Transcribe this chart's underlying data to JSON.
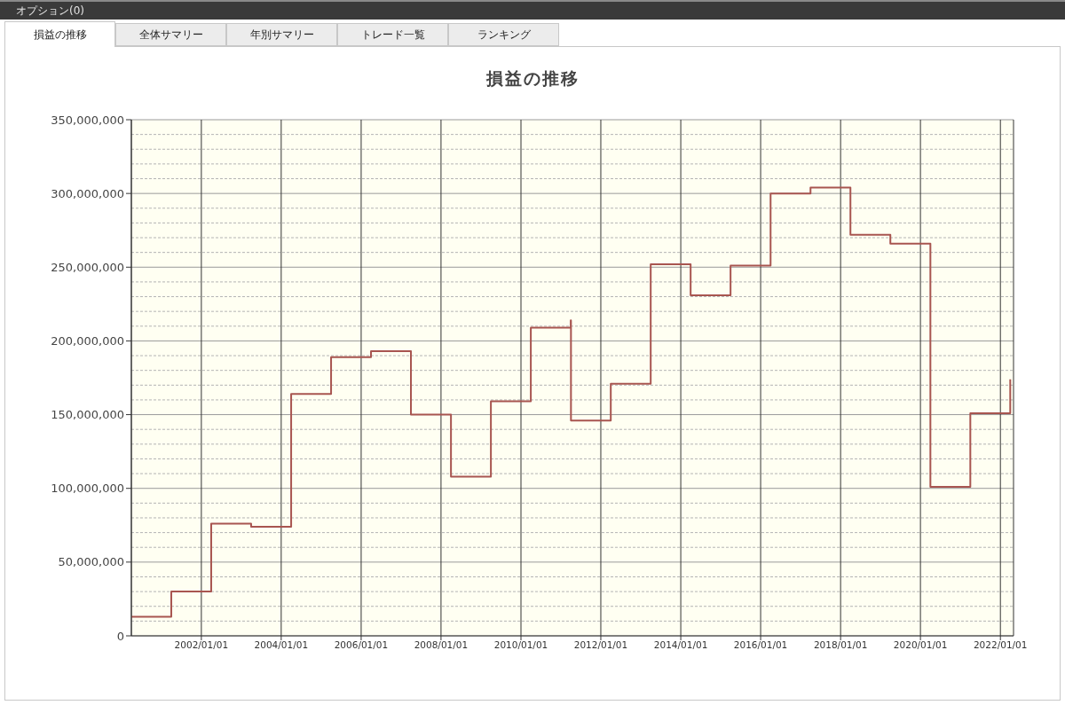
{
  "chart_data": {
    "type": "step",
    "title": "損益の推移",
    "annotations": [
      "オプション(0)",
      "損益の推移",
      "全体サマリー",
      "年別サマリー",
      "トレード一覧",
      "ランキング"
    ],
    "x": [
      "2000-04-01",
      "2001-04-01",
      "2002-04-01",
      "2003-04-01",
      "2004-04-01",
      "2005-04-01",
      "2006-04-01",
      "2007-04-01",
      "2008-04-01",
      "2009-04-01",
      "2010-04-01",
      "2011-04-01",
      "2011-04-03",
      "2012-04-01",
      "2013-04-01",
      "2014-04-01",
      "2015-04-01",
      "2016-04-01",
      "2017-04-01",
      "2018-04-01",
      "2019-04-01",
      "2020-04-01",
      "2021-04-01",
      "2022-04-01"
    ],
    "values": [
      13000000,
      30000000,
      76000000,
      74000000,
      164000000,
      189000000,
      193000000,
      150000000,
      108000000,
      159000000,
      209000000,
      214000000,
      146000000,
      171000000,
      252000000,
      231000000,
      251000000,
      300000000,
      304000000,
      272000000,
      266000000,
      101000000,
      151000000,
      174000000
    ],
    "color": "#a85550",
    "line_style": "solid",
    "xlim": [
      "2000-04-01",
      "2022-05-01"
    ],
    "xticks": [
      {
        "value": "2002-01-01",
        "label": "2002/01/01"
      },
      {
        "value": "2004-01-01",
        "label": "2004/01/01"
      },
      {
        "value": "2006-01-01",
        "label": "2006/01/01"
      },
      {
        "value": "2008-01-01",
        "label": "2008/01/01"
      },
      {
        "value": "2010-01-01",
        "label": "2010/01/01"
      },
      {
        "value": "2012-01-01",
        "label": "2012/01/01"
      },
      {
        "value": "2014-01-01",
        "label": "2014/01/01"
      },
      {
        "value": "2016-01-01",
        "label": "2016/01/01"
      },
      {
        "value": "2018-01-01",
        "label": "2018/01/01"
      },
      {
        "value": "2020-01-01",
        "label": "2020/01/01"
      },
      {
        "value": "2022-01-01",
        "label": "2022/01/01"
      }
    ],
    "ylim": [
      0,
      350000000
    ],
    "yticks": [
      0,
      {
        "value": 10000000,
        "label": null
      },
      {
        "value": 20000000,
        "label": null
      },
      {
        "value": 30000000,
        "label": null
      },
      {
        "value": 40000000,
        "label": null
      },
      {
        "value": 50000000,
        "label": "50,000,000"
      },
      {
        "value": 60000000,
        "label": null
      },
      {
        "value": 70000000,
        "label": null
      },
      {
        "value": 80000000,
        "label": null
      },
      {
        "value": 90000000,
        "label": null
      },
      {
        "value": 100000000,
        "label": "100,000,000"
      },
      {
        "value": 110000000,
        "label": null
      },
      {
        "value": 120000000,
        "label": null
      },
      {
        "value": 130000000,
        "label": null
      },
      {
        "value": 140000000,
        "label": null
      },
      {
        "value": 150000000,
        "label": "150,000,000"
      },
      {
        "value": 160000000,
        "label": null
      },
      {
        "value": 170000000,
        "label": null
      },
      {
        "value": 180000000,
        "label": null
      },
      {
        "value": 190000000,
        "label": null
      },
      {
        "value": 200000000,
        "label": "200,000,000"
      },
      {
        "value": 210000000,
        "label": null
      },
      {
        "value": 220000000,
        "label": null
      },
      {
        "value": 230000000,
        "label": null
      },
      {
        "value": 240000000,
        "label": null
      },
      {
        "value": 250000000,
        "label": "250,000,000"
      },
      {
        "value": 260000000,
        "label": null
      },
      {
        "value": 270000000,
        "label": null
      },
      {
        "value": 280000000,
        "label": null
      },
      {
        "value": 290000000,
        "label": null
      },
      {
        "value": 300000000,
        "label": "300,000,000"
      },
      {
        "value": 310000000,
        "label": null
      },
      {
        "value": 320000000,
        "label": null
      },
      {
        "value": 330000000,
        "label": null
      },
      {
        "value": 340000000,
        "label": null
      },
      {
        "value": 350000000,
        "label": "350,000,000"
      }
    ],
    "grid": true
  }
}
